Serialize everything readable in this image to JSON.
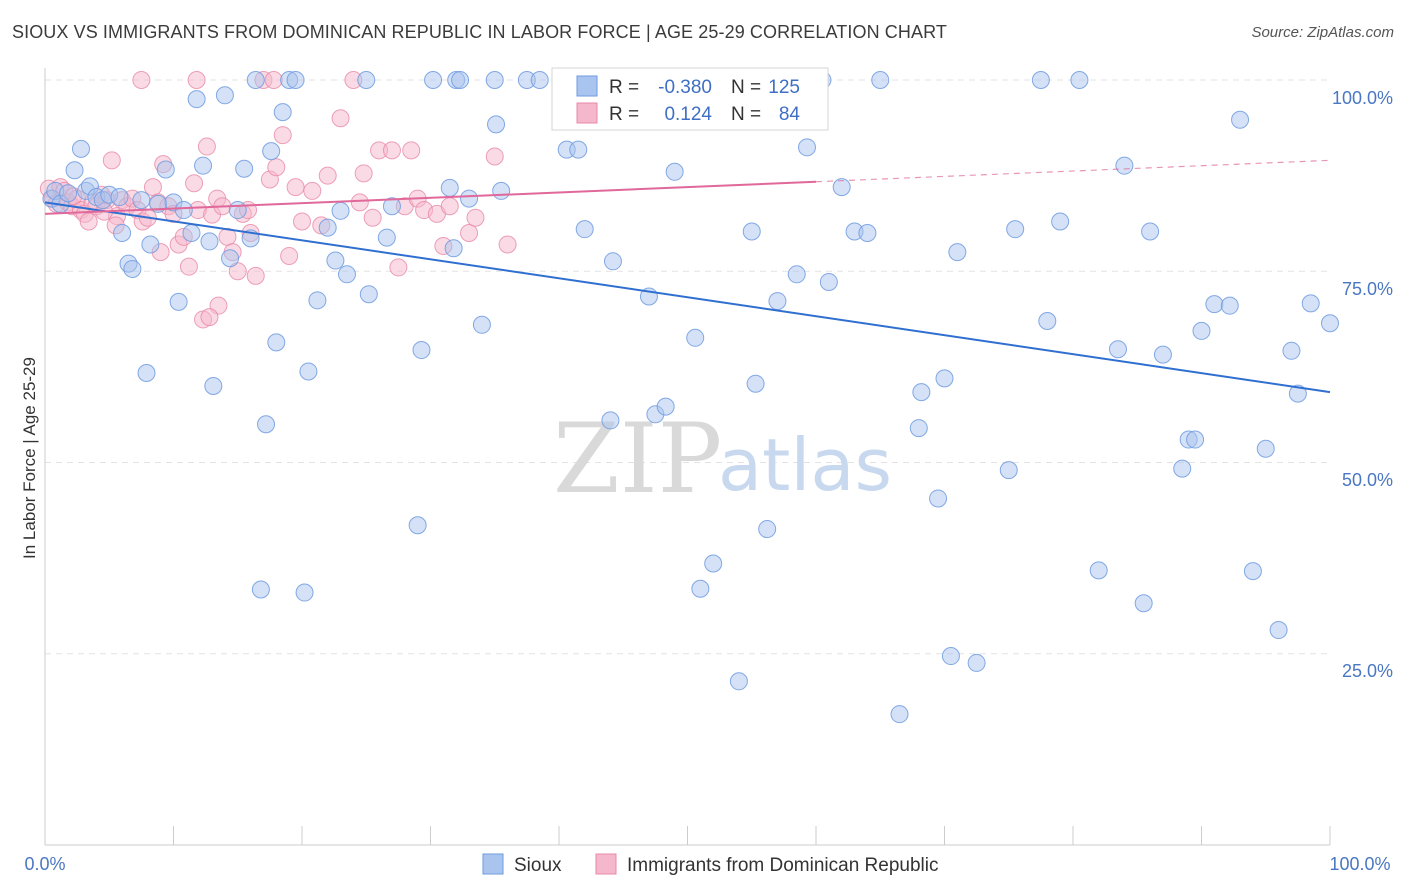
{
  "header": {
    "title": "SIOUX VS IMMIGRANTS FROM DOMINICAN REPUBLIC IN LABOR FORCE | AGE 25-29 CORRELATION CHART",
    "source": "Source: ZipAtlas.com"
  },
  "watermark": {
    "zip": "ZIP",
    "atlas": "atlas"
  },
  "stats": {
    "r_label": "R =",
    "n_label": "N =",
    "sioux": {
      "r": "-0.380",
      "n": "125"
    },
    "dominican": {
      "r": "0.124",
      "n": "84"
    }
  },
  "colors": {
    "sioux_fill": "#a9c4ee",
    "sioux_stroke": "#6e9be0",
    "sioux_line": "#2f6fd0",
    "dominican_fill": "#f5b7cb",
    "dominican_stroke": "#e88aa8",
    "dominican_line": "#e0689a",
    "tick_text": "#4a77c2",
    "grid": "#e3e3e3"
  },
  "chart_data": {
    "type": "scatter",
    "title": "SIOUX VS IMMIGRANTS FROM DOMINICAN REPUBLIC IN LABOR FORCE | AGE 25-29 CORRELATION CHART",
    "xlabel": "",
    "ylabel": "In Labor Force | Age 25-29",
    "xlim": [
      0,
      100
    ],
    "ylim": [
      0,
      104
    ],
    "x_tick_labels": [
      "0.0%",
      "100.0%"
    ],
    "y_ticks": [
      25,
      50,
      75,
      100
    ],
    "y_tick_labels": [
      "25.0%",
      "50.0%",
      "75.0%",
      "100.0%"
    ],
    "grid": true,
    "legend_position": "bottom-center",
    "series": [
      {
        "name": "Sioux",
        "trend": {
          "x": [
            0,
            100
          ],
          "y": [
            84.0,
            59.2
          ]
        },
        "points": [
          [
            0.5,
            84.5
          ],
          [
            0.8,
            85.5
          ],
          [
            1.2,
            83.8
          ],
          [
            1.8,
            85.2
          ],
          [
            2.3,
            88.2
          ],
          [
            2.8,
            91.0
          ],
          [
            3.2,
            85.5
          ],
          [
            3.5,
            86.1
          ],
          [
            4.0,
            84.7
          ],
          [
            4.5,
            84.3
          ],
          [
            5.0,
            85.0
          ],
          [
            5.8,
            84.7
          ],
          [
            6.0,
            80.0
          ],
          [
            6.5,
            76.0
          ],
          [
            6.8,
            75.3
          ],
          [
            7.5,
            84.3
          ],
          [
            7.9,
            61.7
          ],
          [
            8.2,
            78.5
          ],
          [
            8.8,
            83.8
          ],
          [
            9.4,
            88.3
          ],
          [
            10.0,
            84.0
          ],
          [
            10.4,
            71.0
          ],
          [
            10.8,
            83.0
          ],
          [
            11.4,
            80.0
          ],
          [
            11.8,
            97.5
          ],
          [
            12.3,
            88.8
          ],
          [
            12.8,
            78.9
          ],
          [
            13.1,
            60.0
          ],
          [
            14.0,
            98.0
          ],
          [
            14.4,
            76.7
          ],
          [
            15.0,
            83.0
          ],
          [
            15.5,
            88.4
          ],
          [
            16.0,
            79.3
          ],
          [
            16.4,
            100.0
          ],
          [
            16.8,
            33.4
          ],
          [
            17.2,
            55.0
          ],
          [
            17.6,
            90.7
          ],
          [
            18.0,
            65.7
          ],
          [
            18.5,
            95.8
          ],
          [
            19.0,
            100.0
          ],
          [
            19.5,
            100.0
          ],
          [
            20.2,
            33.0
          ],
          [
            20.5,
            61.9
          ],
          [
            21.2,
            71.2
          ],
          [
            22.0,
            80.7
          ],
          [
            22.6,
            76.4
          ],
          [
            23.0,
            82.9
          ],
          [
            23.5,
            74.6
          ],
          [
            25.0,
            100.0
          ],
          [
            25.2,
            72.0
          ],
          [
            26.6,
            79.4
          ],
          [
            27.0,
            83.5
          ],
          [
            29.0,
            41.8
          ],
          [
            29.3,
            64.7
          ],
          [
            30.2,
            100.0
          ],
          [
            31.5,
            85.9
          ],
          [
            32.0,
            100.0
          ],
          [
            32.3,
            100.0
          ],
          [
            31.8,
            78.0
          ],
          [
            33.0,
            84.5
          ],
          [
            34.0,
            68.0
          ],
          [
            35.0,
            100.0
          ],
          [
            35.1,
            94.2
          ],
          [
            35.5,
            85.5
          ],
          [
            37.5,
            100.0
          ],
          [
            38.5,
            100.0
          ],
          [
            40.6,
            90.9
          ],
          [
            41.5,
            90.9
          ],
          [
            42.0,
            80.5
          ],
          [
            44.0,
            55.5
          ],
          [
            44.2,
            76.3
          ],
          [
            47.0,
            71.7
          ],
          [
            47.5,
            56.3
          ],
          [
            48.3,
            57.3
          ],
          [
            49.0,
            88.0
          ],
          [
            50.6,
            66.3
          ],
          [
            52.0,
            36.8
          ],
          [
            51.0,
            33.5
          ],
          [
            54.0,
            21.4
          ],
          [
            55.0,
            80.2
          ],
          [
            55.3,
            60.3
          ],
          [
            56.2,
            41.3
          ],
          [
            57.0,
            71.1
          ],
          [
            58.5,
            74.6
          ],
          [
            59.3,
            91.2
          ],
          [
            60.5,
            100.0
          ],
          [
            61.0,
            73.6
          ],
          [
            62.0,
            86.0
          ],
          [
            63.0,
            80.2
          ],
          [
            64.0,
            80.0
          ],
          [
            65.0,
            100.0
          ],
          [
            66.5,
            17.1
          ],
          [
            68.0,
            54.5
          ],
          [
            68.2,
            59.2
          ],
          [
            69.5,
            45.3
          ],
          [
            70.0,
            61.0
          ],
          [
            70.5,
            24.7
          ],
          [
            71.0,
            77.5
          ],
          [
            72.5,
            23.8
          ],
          [
            75.0,
            49.0
          ],
          [
            75.5,
            80.5
          ],
          [
            77.5,
            100.0
          ],
          [
            78.0,
            68.5
          ],
          [
            79.0,
            81.5
          ],
          [
            80.5,
            100.0
          ],
          [
            82.0,
            35.9
          ],
          [
            83.5,
            64.8
          ],
          [
            84.0,
            88.8
          ],
          [
            85.5,
            31.6
          ],
          [
            86.0,
            80.2
          ],
          [
            87.0,
            64.1
          ],
          [
            88.5,
            49.2
          ],
          [
            89.0,
            53.0
          ],
          [
            89.5,
            53.0
          ],
          [
            90.0,
            67.2
          ],
          [
            91.0,
            70.7
          ],
          [
            92.2,
            70.5
          ],
          [
            93.0,
            94.8
          ],
          [
            94.0,
            35.8
          ],
          [
            95.0,
            51.8
          ],
          [
            96.0,
            28.1
          ],
          [
            97.0,
            64.6
          ],
          [
            97.5,
            59.0
          ],
          [
            98.5,
            70.8
          ],
          [
            100.0,
            68.2
          ]
        ]
      },
      {
        "name": "Immigrants from Dominican Republic",
        "trend": {
          "x": [
            0,
            60
          ],
          "y": [
            82.5,
            86.7
          ]
        },
        "dashed": {
          "x": [
            60,
            100
          ],
          "y": [
            86.7,
            89.5
          ]
        },
        "points": [
          [
            0.3,
            85.8
          ],
          [
            0.6,
            84.5
          ],
          [
            0.9,
            83.8
          ],
          [
            1.2,
            86.0
          ],
          [
            1.5,
            85.5
          ],
          [
            1.8,
            84.0
          ],
          [
            2.1,
            83.5
          ],
          [
            2.5,
            84.5
          ],
          [
            2.8,
            83.0
          ],
          [
            3.1,
            82.5
          ],
          [
            3.4,
            81.5
          ],
          [
            3.7,
            84.0
          ],
          [
            4.0,
            83.5
          ],
          [
            4.4,
            85.0
          ],
          [
            4.8,
            84.3
          ],
          [
            5.2,
            89.5
          ],
          [
            5.6,
            82.2
          ],
          [
            6.0,
            84.3
          ],
          [
            6.4,
            83.5
          ],
          [
            6.8,
            84.5
          ],
          [
            7.2,
            83.0
          ],
          [
            7.6,
            81.5
          ],
          [
            8.0,
            82.0
          ],
          [
            8.4,
            86.0
          ],
          [
            8.8,
            84.0
          ],
          [
            9.2,
            89.0
          ],
          [
            9.6,
            83.5
          ],
          [
            10.0,
            82.5
          ],
          [
            10.4,
            78.5
          ],
          [
            10.8,
            79.5
          ],
          [
            11.2,
            75.6
          ],
          [
            11.6,
            86.5
          ],
          [
            11.9,
            83.0
          ],
          [
            12.3,
            68.7
          ],
          [
            12.6,
            91.3
          ],
          [
            13.0,
            82.4
          ],
          [
            13.4,
            84.5
          ],
          [
            13.8,
            83.5
          ],
          [
            14.2,
            79.5
          ],
          [
            14.6,
            77.5
          ],
          [
            15.0,
            75.0
          ],
          [
            15.4,
            82.5
          ],
          [
            15.8,
            83.0
          ],
          [
            16.4,
            74.4
          ],
          [
            17.0,
            100.0
          ],
          [
            17.5,
            87.0
          ],
          [
            18.0,
            88.6
          ],
          [
            18.5,
            92.8
          ],
          [
            19.0,
            77.0
          ],
          [
            19.5,
            86.0
          ],
          [
            20.0,
            81.5
          ],
          [
            21.5,
            81.0
          ],
          [
            22.0,
            87.5
          ],
          [
            23.0,
            95.0
          ],
          [
            24.0,
            100.0
          ],
          [
            24.8,
            87.8
          ],
          [
            25.5,
            82.0
          ],
          [
            26.0,
            90.8
          ],
          [
            27.0,
            90.8
          ],
          [
            28.0,
            83.5
          ],
          [
            28.5,
            90.8
          ],
          [
            29.0,
            84.5
          ],
          [
            29.5,
            83.0
          ],
          [
            30.5,
            82.5
          ],
          [
            31.0,
            78.3
          ],
          [
            33.0,
            80.0
          ],
          [
            33.5,
            82.0
          ],
          [
            35.0,
            90.0
          ],
          [
            36.0,
            78.5
          ],
          [
            56.5,
            100.0
          ],
          [
            7.5,
            100.0
          ],
          [
            11.8,
            100.0
          ],
          [
            17.8,
            100.0
          ],
          [
            9.0,
            77.5
          ],
          [
            13.5,
            70.5
          ],
          [
            12.8,
            69.0
          ],
          [
            16.0,
            80.0
          ],
          [
            20.8,
            85.5
          ],
          [
            27.5,
            75.5
          ],
          [
            24.5,
            84.0
          ],
          [
            5.5,
            81.0
          ],
          [
            31.5,
            83.5
          ],
          [
            2.2,
            84.8
          ],
          [
            4.6,
            82.8
          ]
        ]
      }
    ]
  },
  "legend": {
    "items": [
      "Sioux",
      "Immigrants from Dominican Republic"
    ]
  }
}
